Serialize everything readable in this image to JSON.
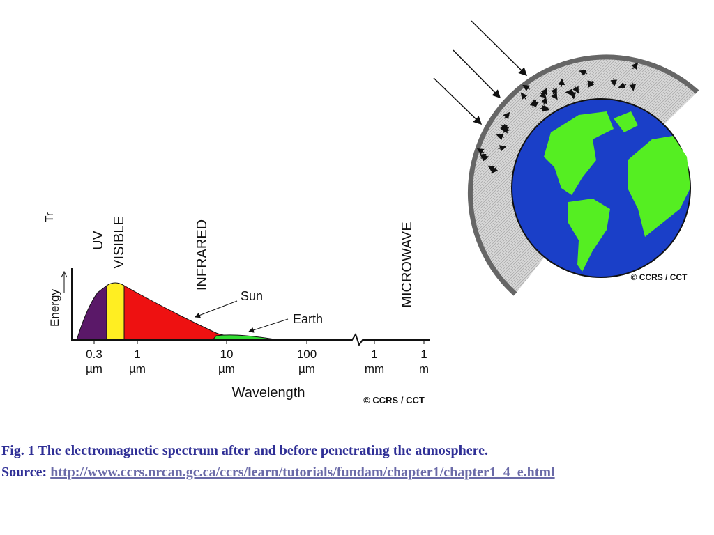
{
  "spectrum": {
    "cropped_label": "Tr",
    "bands": [
      "UV",
      "VISIBLE",
      "INFRARED",
      "MICROWAVE"
    ],
    "y_axis_label": "Energy",
    "curve_labels": [
      "Sun",
      "Earth"
    ],
    "ticks": [
      {
        "value": "0.3",
        "unit": "µm"
      },
      {
        "value": "1",
        "unit": "µm"
      },
      {
        "value": "10",
        "unit": "µm"
      },
      {
        "value": "100",
        "unit": "µm"
      },
      {
        "value": "1",
        "unit": "mm"
      },
      {
        "value": "1",
        "unit": "m"
      }
    ],
    "x_axis_label": "Wavelength",
    "credit": "© CCRS / CCT"
  },
  "earth": {
    "credit": "© CCRS / CCT"
  },
  "caption": {
    "title": "Fig. 1 The electromagnetic spectrum after and before penetrating the atmosphere.",
    "source_label": "Source:",
    "source_url": "http://www.ccrs.nrcan.gc.ca/ccrs/learn/tutorials/fundam/chapter1/chapter1_4_e.html"
  }
}
